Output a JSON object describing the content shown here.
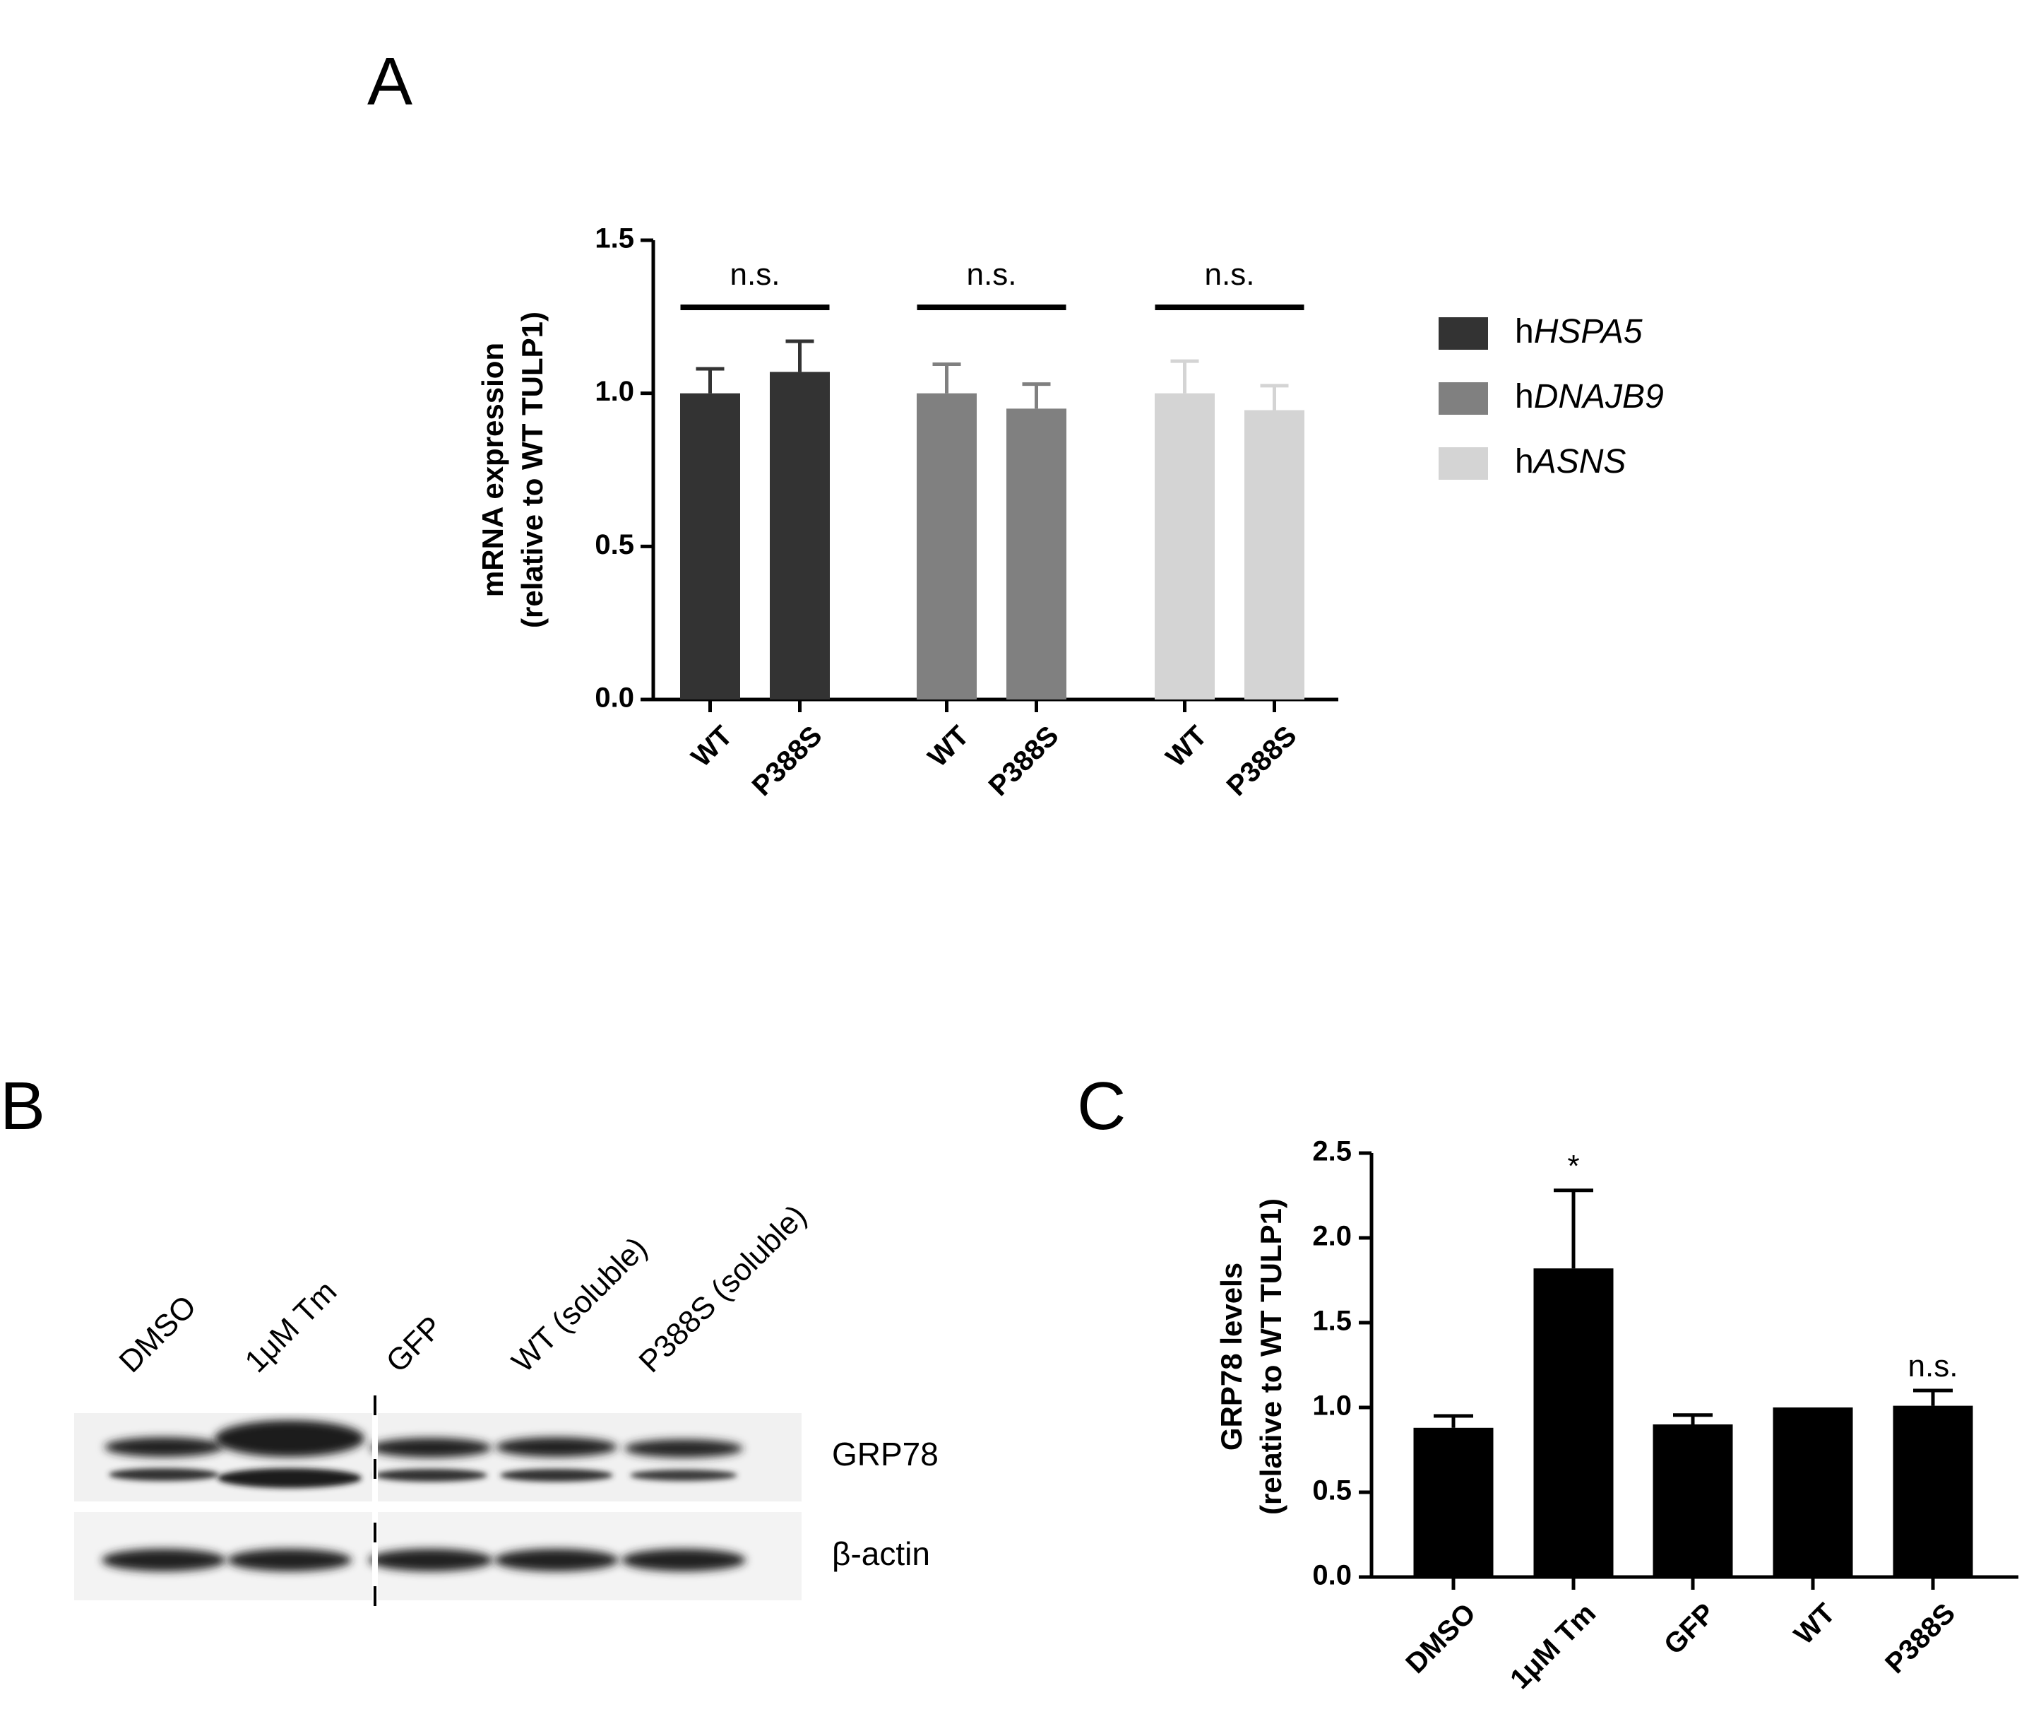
{
  "panels": {
    "a": "A",
    "b": "B",
    "c": "C"
  },
  "chart_data": [
    {
      "panel": "A",
      "type": "bar",
      "title": "",
      "ylabel": [
        "mRNA expression",
        "(relative to WT TULP1)"
      ],
      "xlabel": "",
      "ylim": [
        0,
        1.5
      ],
      "yticks": [
        "0.0",
        "0.5",
        "1.0",
        "1.5"
      ],
      "grid": false,
      "legend": "right",
      "categories": [
        "WT",
        "P388S"
      ],
      "series": [
        {
          "name": "HSPA5",
          "prefix": "h",
          "color": "#333333",
          "values": [
            1.0,
            1.07
          ],
          "errors": [
            0.08,
            0.1
          ],
          "comparison": "n.s."
        },
        {
          "name": "DNAJB9",
          "prefix": "h",
          "color": "#808080",
          "values": [
            1.0,
            0.95
          ],
          "errors": [
            0.095,
            0.08
          ],
          "comparison": "n.s."
        },
        {
          "name": "ASNS",
          "prefix": "h",
          "color": "#d4d4d4",
          "values": [
            1.0,
            0.945
          ],
          "errors": [
            0.105,
            0.08
          ],
          "comparison": "n.s."
        }
      ]
    },
    {
      "panel": "C",
      "type": "bar",
      "title": "",
      "ylabel": [
        "GRP78 levels",
        "(relative to WT TULP1)"
      ],
      "xlabel": "",
      "ylim": [
        0,
        2.5
      ],
      "yticks": [
        "0.0",
        "0.5",
        "1.0",
        "1.5",
        "2.0",
        "2.5"
      ],
      "grid": false,
      "categories": [
        "DMSO",
        "1μM Tm",
        "GFP",
        "WT",
        "P388S"
      ],
      "values": [
        0.88,
        1.82,
        0.9,
        1.0,
        1.01
      ],
      "errors": [
        0.07,
        0.46,
        0.055,
        0,
        0.09
      ],
      "annotations": [
        "",
        "*",
        "",
        "",
        "n.s."
      ],
      "color": "#000000"
    }
  ],
  "blot": {
    "lanes": [
      "DMSO",
      "1μM Tm",
      "GFP",
      "WT (soluble)",
      "P388S (soluble)"
    ],
    "bands": [
      "GRP78",
      "β-actin"
    ]
  },
  "colors": {
    "background": "#ffffff",
    "axis": "#000000"
  }
}
